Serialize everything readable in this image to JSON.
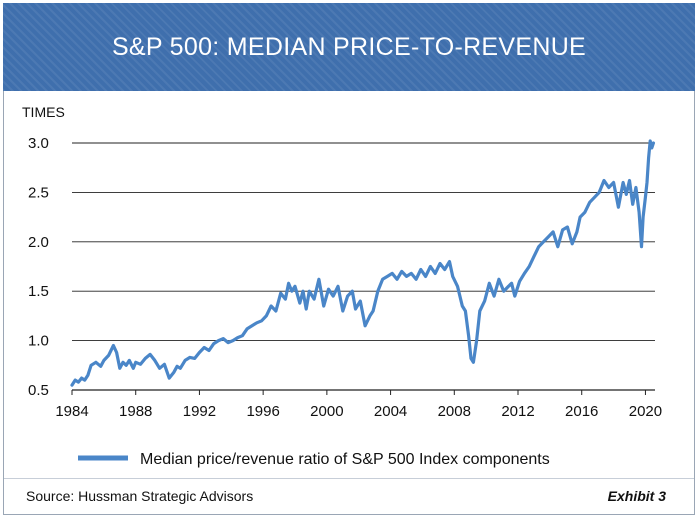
{
  "header": {
    "title": "S&P 500: MEDIAN PRICE-TO-REVENUE"
  },
  "footer": {
    "source": "Source: Hussman Strategic Advisors",
    "exhibit": "Exhibit 3"
  },
  "colors": {
    "banner": "#3f6fad",
    "line": "#4a86c8"
  },
  "chart_data": {
    "type": "line",
    "title": "S&P 500: MEDIAN PRICE-TO-REVENUE",
    "ylabel": "TIMES",
    "xlabel": "",
    "xlim": [
      1984,
      2020.6
    ],
    "ylim": [
      0.5,
      3.0
    ],
    "x_ticks": [
      "1984",
      "1988",
      "1992",
      "1996",
      "2000",
      "2004",
      "2008",
      "2012",
      "2016",
      "2020"
    ],
    "y_ticks": [
      "0.5",
      "1.0",
      "1.5",
      "2.0",
      "2.5",
      "3.0"
    ],
    "grid": "horizontal",
    "legend": "bottom",
    "series": [
      {
        "name": "Median price/revenue ratio of S&P 500 Index components",
        "x": [
          1984.0,
          1984.2,
          1984.4,
          1984.6,
          1984.8,
          1985.0,
          1985.2,
          1985.5,
          1985.8,
          1986.0,
          1986.3,
          1986.6,
          1986.8,
          1987.0,
          1987.2,
          1987.4,
          1987.6,
          1987.85,
          1988.0,
          1988.3,
          1988.6,
          1988.9,
          1989.2,
          1989.5,
          1989.8,
          1990.1,
          1990.4,
          1990.6,
          1990.8,
          1991.1,
          1991.4,
          1991.7,
          1992.0,
          1992.3,
          1992.6,
          1992.9,
          1993.2,
          1993.5,
          1993.8,
          1994.1,
          1994.4,
          1994.7,
          1995.0,
          1995.3,
          1995.6,
          1995.9,
          1996.2,
          1996.5,
          1996.8,
          1997.1,
          1997.4,
          1997.6,
          1997.8,
          1998.0,
          1998.3,
          1998.5,
          1998.7,
          1998.9,
          1999.2,
          1999.5,
          1999.8,
          2000.1,
          2000.4,
          2000.7,
          2001.0,
          2001.3,
          2001.6,
          2001.8,
          2002.1,
          2002.4,
          2002.7,
          2002.9,
          2003.2,
          2003.5,
          2003.8,
          2004.1,
          2004.4,
          2004.7,
          2005.0,
          2005.3,
          2005.6,
          2005.9,
          2006.2,
          2006.5,
          2006.8,
          2007.1,
          2007.4,
          2007.7,
          2007.9,
          2008.2,
          2008.5,
          2008.7,
          2008.9,
          2009.05,
          2009.2,
          2009.4,
          2009.6,
          2009.9,
          2010.2,
          2010.5,
          2010.8,
          2011.1,
          2011.4,
          2011.6,
          2011.8,
          2012.1,
          2012.4,
          2012.7,
          2013.0,
          2013.3,
          2013.6,
          2013.9,
          2014.2,
          2014.5,
          2014.8,
          2015.1,
          2015.4,
          2015.7,
          2015.9,
          2016.2,
          2016.5,
          2016.8,
          2017.1,
          2017.4,
          2017.7,
          2018.0,
          2018.3,
          2018.6,
          2018.8,
          2019.0,
          2019.2,
          2019.4,
          2019.6,
          2019.75,
          2019.85,
          2020.0,
          2020.1,
          2020.2,
          2020.3,
          2020.4,
          2020.5
        ],
        "values": [
          0.55,
          0.6,
          0.58,
          0.62,
          0.6,
          0.65,
          0.75,
          0.78,
          0.74,
          0.8,
          0.85,
          0.95,
          0.88,
          0.72,
          0.78,
          0.75,
          0.8,
          0.72,
          0.78,
          0.76,
          0.82,
          0.86,
          0.8,
          0.72,
          0.76,
          0.62,
          0.68,
          0.74,
          0.72,
          0.8,
          0.83,
          0.82,
          0.88,
          0.93,
          0.9,
          0.97,
          1.0,
          1.02,
          0.98,
          1.0,
          1.03,
          1.05,
          1.12,
          1.15,
          1.18,
          1.2,
          1.25,
          1.35,
          1.3,
          1.48,
          1.42,
          1.58,
          1.5,
          1.55,
          1.38,
          1.5,
          1.32,
          1.5,
          1.42,
          1.62,
          1.35,
          1.52,
          1.45,
          1.55,
          1.3,
          1.45,
          1.5,
          1.32,
          1.4,
          1.15,
          1.25,
          1.3,
          1.5,
          1.62,
          1.65,
          1.68,
          1.62,
          1.7,
          1.65,
          1.68,
          1.62,
          1.72,
          1.65,
          1.75,
          1.68,
          1.78,
          1.72,
          1.8,
          1.65,
          1.55,
          1.35,
          1.3,
          1.05,
          0.82,
          0.78,
          1.0,
          1.3,
          1.4,
          1.58,
          1.45,
          1.62,
          1.5,
          1.55,
          1.58,
          1.45,
          1.6,
          1.68,
          1.75,
          1.85,
          1.95,
          2.0,
          2.05,
          2.1,
          1.95,
          2.12,
          2.15,
          1.98,
          2.1,
          2.25,
          2.3,
          2.4,
          2.45,
          2.5,
          2.62,
          2.55,
          2.6,
          2.35,
          2.6,
          2.48,
          2.62,
          2.38,
          2.55,
          2.3,
          1.95,
          2.25,
          2.45,
          2.6,
          2.85,
          3.02,
          2.95,
          3.0
        ]
      }
    ]
  }
}
